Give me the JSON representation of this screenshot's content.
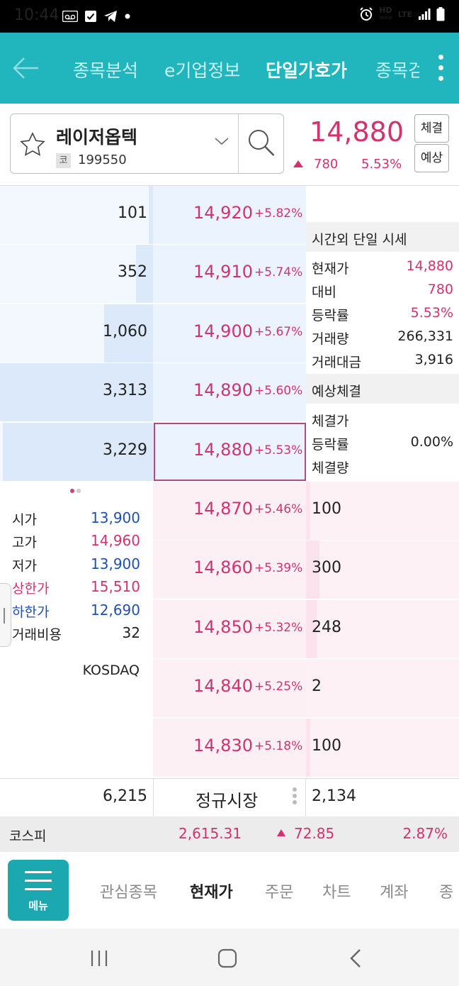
{
  "status_bar": {
    "time": "10:44",
    "network_hd": "HD",
    "network_voice": "Voice",
    "network_lte": "LTE"
  },
  "top_nav": {
    "tabs": [
      {
        "label": "종목분석",
        "active": false
      },
      {
        "label": "e기업정보",
        "active": false
      },
      {
        "label": "단일가호가",
        "active": true
      },
      {
        "label": "종목검",
        "active": false
      }
    ]
  },
  "stock": {
    "name": "레이저옵텍",
    "market_badge": "코",
    "code": "199550",
    "price": "14,880",
    "change": "780",
    "change_rate": "5.53%",
    "btn_trade": "체결",
    "btn_forecast": "예상"
  },
  "orderbook": {
    "asks": [
      {
        "volume": "101",
        "price": "14,920",
        "rate": "+5.82%",
        "fill": 0.03
      },
      {
        "volume": "352",
        "price": "14,910",
        "rate": "+5.74%",
        "fill": 0.11
      },
      {
        "volume": "1,060",
        "price": "14,900",
        "rate": "+5.67%",
        "fill": 0.32
      },
      {
        "volume": "3,313",
        "price": "14,890",
        "rate": "+5.60%",
        "fill": 1.0
      },
      {
        "volume": "3,229",
        "price": "14,880",
        "rate": "+5.53%",
        "fill": 0.98
      }
    ],
    "bids": [
      {
        "volume": "100",
        "price": "14,870",
        "rate": "+5.46%",
        "fill": 0.03
      },
      {
        "volume": "300",
        "price": "14,860",
        "rate": "+5.39%",
        "fill": 0.09
      },
      {
        "volume": "248",
        "price": "14,850",
        "rate": "+5.32%",
        "fill": 0.07
      },
      {
        "volume": "2",
        "price": "14,840",
        "rate": "+5.25%",
        "fill": 0.0
      },
      {
        "volume": "100",
        "price": "14,830",
        "rate": "+5.18%",
        "fill": 0.03
      }
    ],
    "total_ask": "6,215",
    "session": "정규시장",
    "total_bid": "2,134"
  },
  "after_hours": {
    "title": "시간외 단일 시세",
    "rows": [
      {
        "label": "현재가",
        "value": "14,880"
      },
      {
        "label": "대비",
        "value": "780"
      },
      {
        "label": "등락률",
        "value": "5.53%"
      },
      {
        "label": "거래량",
        "value": "266,331"
      },
      {
        "label": "거래대금",
        "value": "3,916"
      }
    ]
  },
  "expected": {
    "title": "예상체결",
    "rows": [
      {
        "label": "체결가",
        "value": ""
      },
      {
        "label": "등락률",
        "value": "0.00%"
      },
      {
        "label": "체결량",
        "value": ""
      }
    ]
  },
  "day_info": {
    "rows": [
      {
        "label": "시가",
        "value": "13,900"
      },
      {
        "label": "고가",
        "value": "14,960"
      },
      {
        "label": "저가",
        "value": "13,900"
      },
      {
        "label": "상한가",
        "value": "15,510"
      },
      {
        "label": "하한가",
        "value": "12,690"
      },
      {
        "label": "거래비용",
        "value": "32"
      }
    ],
    "market": "KOSDAQ"
  },
  "index": {
    "name": "코스피",
    "value": "2,615.31",
    "change": "72.85",
    "rate": "2.87%"
  },
  "bottom_menu": {
    "menu_label": "메뉴",
    "tabs": [
      {
        "label": "관심종목",
        "active": false
      },
      {
        "label": "현재가",
        "active": true
      },
      {
        "label": "주문",
        "active": false
      },
      {
        "label": "차트",
        "active": false
      },
      {
        "label": "계좌",
        "active": false
      },
      {
        "label": "종",
        "active": false
      }
    ]
  },
  "colors": {
    "accent": "#21b5bd",
    "up_red": "#d3326e",
    "down_blue": "#1f4fb6"
  }
}
